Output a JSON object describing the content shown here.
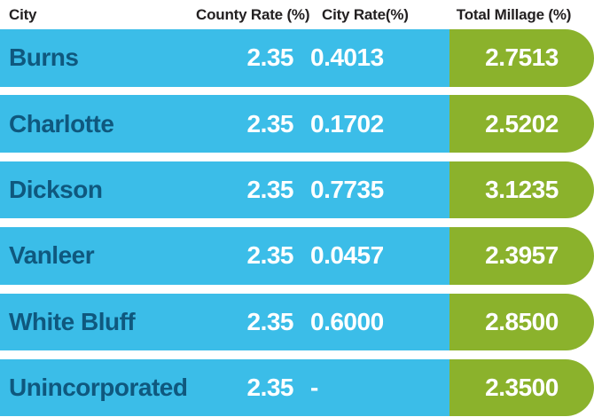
{
  "chart_data": {
    "type": "table",
    "columns": [
      "City",
      "County Rate (%)",
      "City Rate(%)",
      "Total Millage (%)"
    ],
    "rows": [
      [
        "Burns",
        "2.35",
        "0.4013",
        "2.7513"
      ],
      [
        "Charlotte",
        "2.35",
        "0.1702",
        "2.5202"
      ],
      [
        "Dickson",
        "2.35",
        "0.7735",
        "3.1235"
      ],
      [
        "Vanleer",
        "2.35",
        "0.0457",
        "2.3957"
      ],
      [
        "White Bluff",
        "2.35",
        "0.6000",
        "2.8500"
      ],
      [
        "Unincorporated",
        "2.35",
        "-",
        "2.3500"
      ]
    ]
  },
  "colors": {
    "row_blue": "#3BBDE8",
    "pill_green": "#8BB22C",
    "city_text": "#0F587E",
    "header_text": "#232021",
    "value_text": "#FFFFFF"
  }
}
